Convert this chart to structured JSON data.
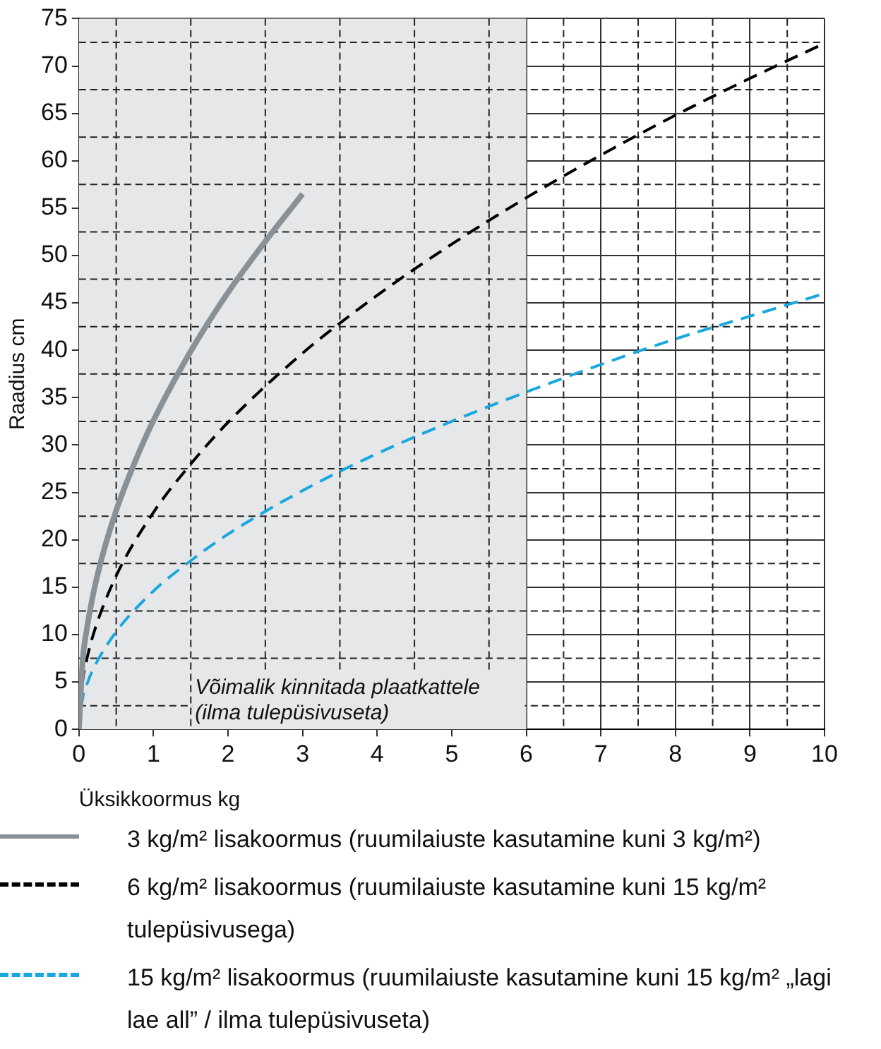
{
  "chart_data": {
    "type": "line",
    "xlabel": "Üksikkoormus kg",
    "ylabel": "Raadius cm",
    "xlim": [
      0,
      10
    ],
    "xticks": [
      0,
      1,
      2,
      3,
      4,
      5,
      6,
      7,
      8,
      9,
      10
    ],
    "ylim": [
      0,
      75
    ],
    "yticks": [
      0,
      5,
      10,
      15,
      20,
      25,
      30,
      35,
      40,
      45,
      50,
      55,
      60,
      65,
      70,
      75
    ],
    "grid": true,
    "legend": "bottom",
    "marker": "none",
    "bands": [
      {
        "axis": "x",
        "from": 0,
        "to": 6,
        "label": "Võimalik kinnitada plaatkattele\n(ilma tulepüsivuseta)",
        "color": "#e6e7e8"
      }
    ],
    "series": [
      {
        "name": "3 kg/m² lisakoormus (ruumilaiuste kasutamine kuni 3 kg/m²)",
        "color": "#8a9196",
        "line_style": "solid",
        "x": [
          0,
          0.05,
          0.1,
          0.2,
          0.3,
          0.5,
          0.75,
          1,
          1.5,
          2,
          2.5,
          3
        ],
        "values": [
          0,
          7.3,
          10.3,
          14.6,
          17.9,
          23.1,
          28.2,
          32.6,
          39.9,
          46.1,
          51.5,
          56.5
        ]
      },
      {
        "name": "6 kg/m² lisakoormus (ruumilaiuste kasutamine kuni 15 kg/m² tulepüsivusega)",
        "color": "#000000",
        "line_style": "dashed",
        "x": [
          0,
          0.05,
          0.1,
          0.2,
          0.5,
          1,
          1.5,
          2,
          3,
          4,
          5,
          6,
          7,
          8,
          9,
          10
        ],
        "values": [
          0,
          5.1,
          7.2,
          10.2,
          16.2,
          22.9,
          28,
          32.4,
          39.7,
          45.8,
          51.2,
          56.1,
          60.6,
          64.8,
          68.7,
          72.4
        ]
      },
      {
        "name": "15 kg/m² lisakoormus (ruumilaiuste kasutamine kuni 15 kg/m² „lagi lae all” / ilma tulepüsivuseta)",
        "color": "#1aa7e0",
        "line_style": "dashed",
        "x": [
          0,
          0.05,
          0.1,
          0.2,
          0.5,
          1,
          1.5,
          2,
          3,
          4,
          5,
          6,
          7,
          8,
          9,
          10
        ],
        "values": [
          0,
          3.3,
          4.6,
          6.5,
          10.3,
          14.6,
          17.8,
          20.6,
          25.2,
          29.1,
          32.5,
          35.6,
          38.5,
          41.2,
          43.6,
          46
        ]
      }
    ]
  }
}
